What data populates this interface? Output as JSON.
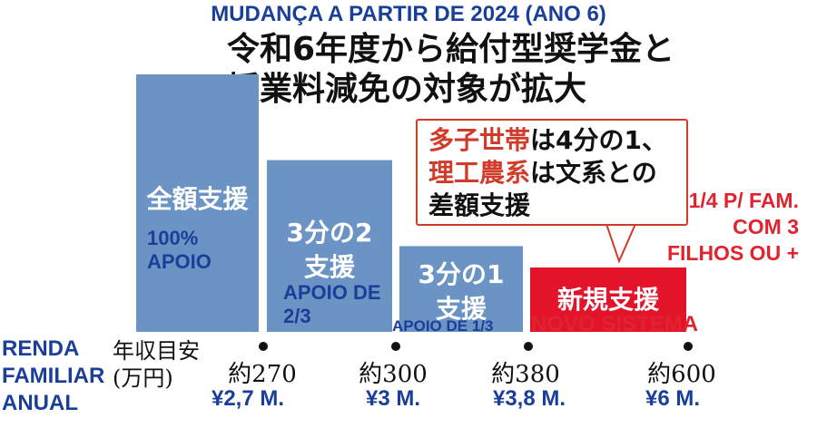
{
  "title_pt": "MUDANÇA A PARTIR DE 2024 (ANO 6)",
  "title_jp": [
    "令和6年度から給付型奨学金と",
    "授業料減免の対象が拡大"
  ],
  "callout": {
    "line1_red": "多子世帯",
    "line1_rest": "は4分の1、",
    "line2_red": "理工農系",
    "line2_rest": "は文系との",
    "line3": "差額支援",
    "translation": [
      "1/4 P/ FAM.",
      "COM 3",
      "FILHOS OU +"
    ]
  },
  "x_axis": {
    "label_jp": [
      "年収目安",
      "(万円)"
    ],
    "label_pt": [
      "RENDA",
      "FAMILIAR",
      "ANUAL"
    ]
  },
  "chart_data": {
    "type": "bar",
    "categories": [
      "全額支援",
      "3分の2支援",
      "3分の1支援",
      "新規支援"
    ],
    "categories_pt": [
      "100% APOIO",
      "APOIO DE 2/3",
      "APOIO DE 1/3",
      "NOVO SISTEMA"
    ],
    "values": [
      100,
      66.7,
      33.3,
      25
    ],
    "income_ticks_jp": [
      "約270",
      "約300",
      "約380",
      "約600"
    ],
    "income_ticks_pt": [
      "¥2,7 M.",
      "¥3 M.",
      "¥3,8 M.",
      "¥6 M."
    ],
    "bar_colors": [
      "#6b93c4",
      "#6b93c4",
      "#6b93c4",
      "#e3142a"
    ],
    "grid": false
  }
}
